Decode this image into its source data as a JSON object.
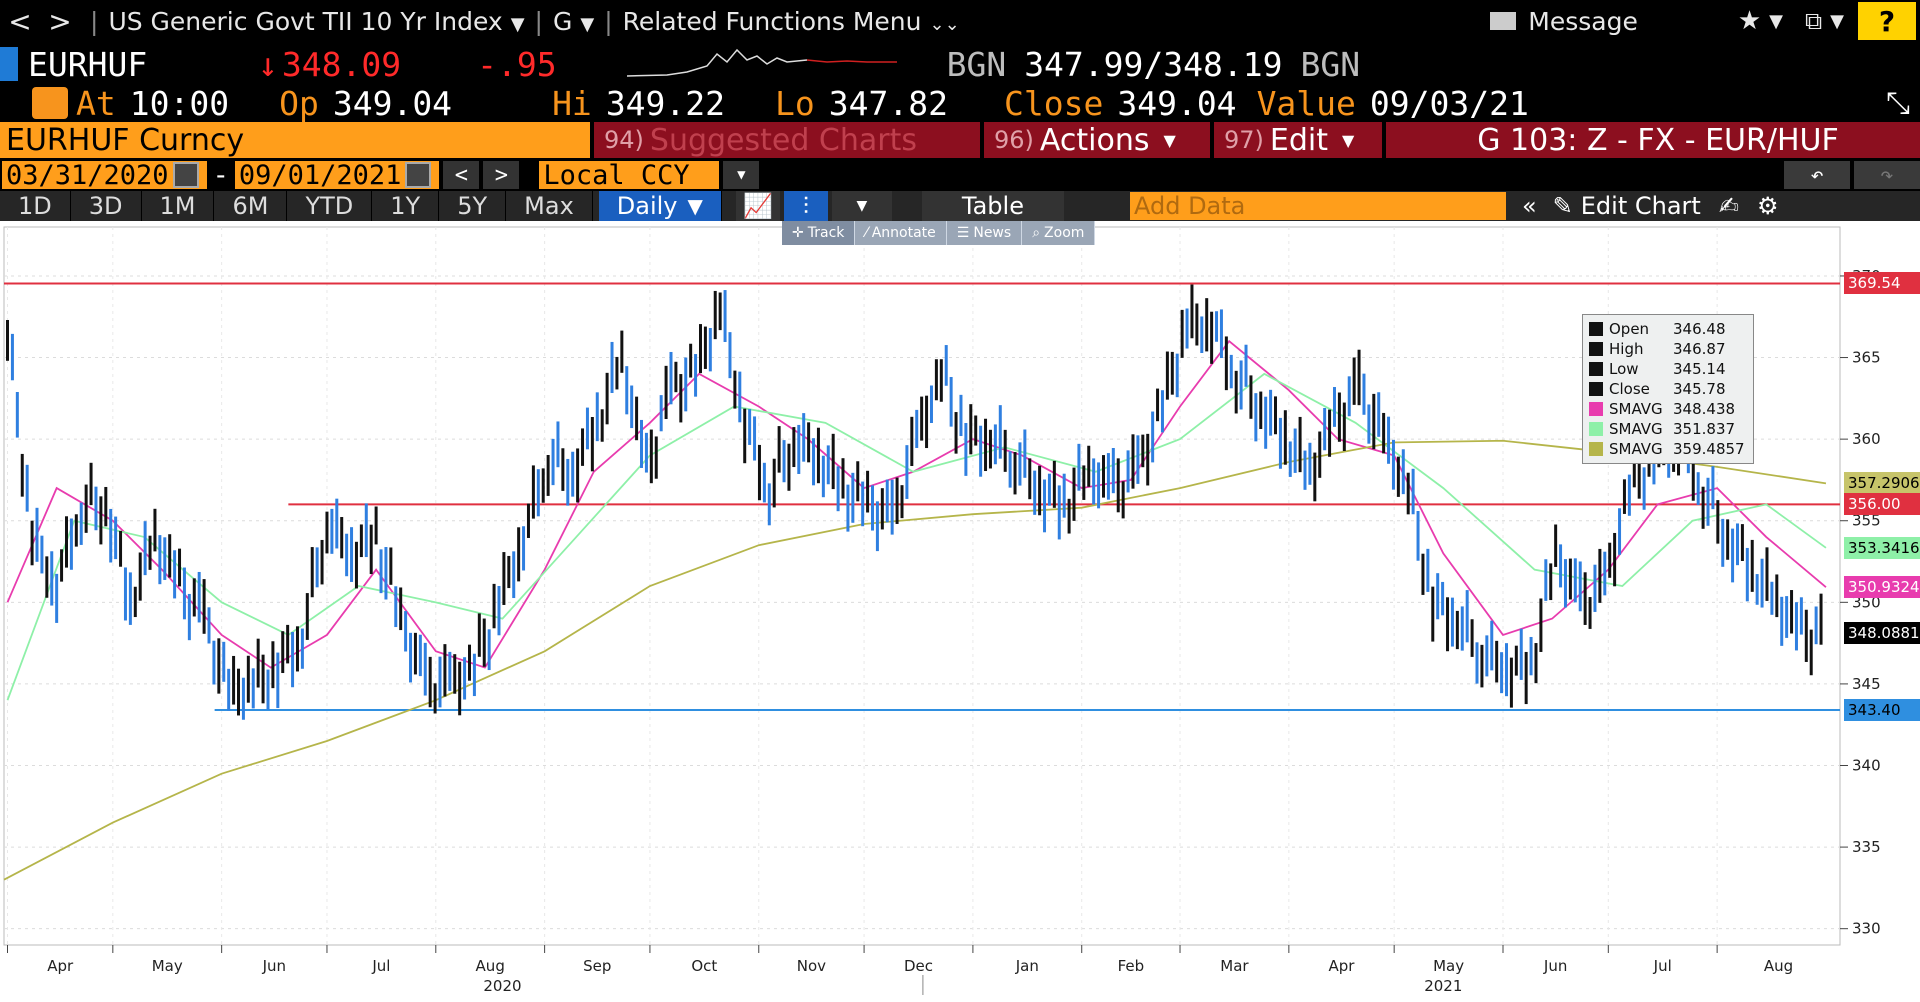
{
  "nav": {
    "back": "<",
    "forward": ">",
    "security": "US Generic Govt TII 10 Yr Index",
    "function": "G",
    "related": "Related Functions Menu",
    "message": "Message",
    "help": "?"
  },
  "ticker": {
    "symbol": "EURHUF",
    "arrow": "↓",
    "last": "348.09",
    "change": "-.95",
    "bid_src": "BGN",
    "bid": "347.99",
    "slash": "/",
    "ask": "348.19",
    "ask_src": "BGN"
  },
  "stats": {
    "at_label": "At",
    "at": "10:00",
    "op_label": "Op",
    "op": "349.04",
    "hi_label": "Hi",
    "hi": "349.22",
    "lo_label": "Lo",
    "lo": "347.82",
    "close_label": "Close",
    "close": "349.04",
    "value_label": "Value",
    "value": "09/03/21"
  },
  "bar4": {
    "security": "EURHUF Curncy",
    "suggested_num": "94)",
    "suggested": "Suggested Charts",
    "actions_num": "96)",
    "actions": "Actions",
    "edit_num": "97)",
    "edit": "Edit",
    "chart_name": "G 103: Z - FX - EUR/HUF"
  },
  "range": {
    "start": "03/31/2020",
    "dash": "-",
    "end": "09/01/2021",
    "ccy": "Local CCY"
  },
  "periods": [
    "1D",
    "3D",
    "1M",
    "6M",
    "YTD",
    "1Y",
    "5Y",
    "Max"
  ],
  "frequency": "Daily",
  "table_label": "Table",
  "add_data_placeholder": "Add Data",
  "edit_chart": "Edit Chart",
  "mini_toolbar": [
    "Track",
    "Annotate",
    "News",
    "Zoom"
  ],
  "legend": [
    {
      "key": "Open",
      "val": "346.48",
      "color": "#111111"
    },
    {
      "key": "High",
      "val": "346.87",
      "color": "#111111"
    },
    {
      "key": "Low",
      "val": "345.14",
      "color": "#111111"
    },
    {
      "key": "Close",
      "val": "345.78",
      "color": "#111111"
    },
    {
      "key": "SMAVG",
      "val": "348.438",
      "color": "#e83cae"
    },
    {
      "key": "SMAVG",
      "val": "351.837",
      "color": "#8ef0a8"
    },
    {
      "key": "SMAVG",
      "val": "359.4857",
      "color": "#b5b54a"
    }
  ],
  "price_tags": [
    {
      "val": "369.54",
      "bg": "#e03040",
      "fg": "#ffffff",
      "y": 369.54
    },
    {
      "val": "357.2906",
      "bg": "#c7c46a",
      "fg": "#000000",
      "y": 357.29
    },
    {
      "val": "356.00",
      "bg": "#e03040",
      "fg": "#ffffff",
      "y": 356.0
    },
    {
      "val": "353.3416",
      "bg": "#8ef0a8",
      "fg": "#000000",
      "y": 353.34
    },
    {
      "val": "350.9324",
      "bg": "#e83cae",
      "fg": "#ffffff",
      "y": 350.93
    },
    {
      "val": "348.0881",
      "bg": "#000000",
      "fg": "#ffffff",
      "y": 348.09
    },
    {
      "val": "343.40",
      "bg": "#2f8fe0",
      "fg": "#000000",
      "y": 343.4
    }
  ],
  "chart_data": {
    "type": "line",
    "x_months": [
      "Apr",
      "May",
      "Jun",
      "Jul",
      "Aug",
      "Sep",
      "Oct",
      "Nov",
      "Dec",
      "Jan",
      "Feb",
      "Mar",
      "Apr",
      "May",
      "Jun",
      "Jul",
      "Aug"
    ],
    "years": [
      "2020",
      "2021"
    ],
    "y_ticks": [
      330,
      335,
      340,
      345,
      350,
      355,
      360,
      365,
      370
    ],
    "ylim": [
      329,
      373
    ],
    "hlines": [
      {
        "value": 369.54,
        "color": "#e03040"
      },
      {
        "value": 356.0,
        "color": "#e03040"
      },
      {
        "value": 343.4,
        "color": "#2f8fe0"
      }
    ],
    "price_close": [
      {
        "x": "2020-04-01",
        "y": 366.5
      },
      {
        "x": "2020-04-08",
        "y": 354
      },
      {
        "x": "2020-04-15",
        "y": 351
      },
      {
        "x": "2020-04-22",
        "y": 356
      },
      {
        "x": "2020-04-29",
        "y": 356
      },
      {
        "x": "2020-05-06",
        "y": 350
      },
      {
        "x": "2020-05-13",
        "y": 354
      },
      {
        "x": "2020-05-20",
        "y": 351
      },
      {
        "x": "2020-05-27",
        "y": 349
      },
      {
        "x": "2020-06-03",
        "y": 344.5
      },
      {
        "x": "2020-06-10",
        "y": 345
      },
      {
        "x": "2020-06-17",
        "y": 346
      },
      {
        "x": "2020-06-24",
        "y": 348
      },
      {
        "x": "2020-07-01",
        "y": 355
      },
      {
        "x": "2020-07-08",
        "y": 353
      },
      {
        "x": "2020-07-15",
        "y": 354
      },
      {
        "x": "2020-07-22",
        "y": 349
      },
      {
        "x": "2020-07-29",
        "y": 345
      },
      {
        "x": "2020-08-05",
        "y": 345
      },
      {
        "x": "2020-08-12",
        "y": 346
      },
      {
        "x": "2020-08-19",
        "y": 350
      },
      {
        "x": "2020-08-26",
        "y": 354
      },
      {
        "x": "2020-09-02",
        "y": 359
      },
      {
        "x": "2020-09-09",
        "y": 358
      },
      {
        "x": "2020-09-16",
        "y": 361
      },
      {
        "x": "2020-09-23",
        "y": 365
      },
      {
        "x": "2020-09-30",
        "y": 358
      },
      {
        "x": "2020-10-07",
        "y": 363
      },
      {
        "x": "2020-10-14",
        "y": 364
      },
      {
        "x": "2020-10-21",
        "y": 368
      },
      {
        "x": "2020-10-28",
        "y": 361
      },
      {
        "x": "2020-11-04",
        "y": 357
      },
      {
        "x": "2020-11-11",
        "y": 360
      },
      {
        "x": "2020-11-18",
        "y": 359
      },
      {
        "x": "2020-11-25",
        "y": 357
      },
      {
        "x": "2020-12-02",
        "y": 356
      },
      {
        "x": "2020-12-09",
        "y": 355
      },
      {
        "x": "2020-12-16",
        "y": 360
      },
      {
        "x": "2020-12-23",
        "y": 364
      },
      {
        "x": "2020-12-30",
        "y": 360
      },
      {
        "x": "2021-01-06",
        "y": 360
      },
      {
        "x": "2021-01-13",
        "y": 359
      },
      {
        "x": "2021-01-20",
        "y": 357
      },
      {
        "x": "2021-01-27",
        "y": 356
      },
      {
        "x": "2021-02-03",
        "y": 358
      },
      {
        "x": "2021-02-10",
        "y": 357
      },
      {
        "x": "2021-02-17",
        "y": 358
      },
      {
        "x": "2021-02-24",
        "y": 362
      },
      {
        "x": "2021-03-03",
        "y": 367
      },
      {
        "x": "2021-03-10",
        "y": 367
      },
      {
        "x": "2021-03-17",
        "y": 364
      },
      {
        "x": "2021-03-24",
        "y": 362
      },
      {
        "x": "2021-03-31",
        "y": 360
      },
      {
        "x": "2021-04-07",
        "y": 358
      },
      {
        "x": "2021-04-14",
        "y": 361
      },
      {
        "x": "2021-04-21",
        "y": 363
      },
      {
        "x": "2021-04-28",
        "y": 360
      },
      {
        "x": "2021-05-05",
        "y": 357
      },
      {
        "x": "2021-05-12",
        "y": 350
      },
      {
        "x": "2021-05-19",
        "y": 349
      },
      {
        "x": "2021-05-26",
        "y": 347
      },
      {
        "x": "2021-06-02",
        "y": 346
      },
      {
        "x": "2021-06-09",
        "y": 346
      },
      {
        "x": "2021-06-16",
        "y": 353
      },
      {
        "x": "2021-06-23",
        "y": 350
      },
      {
        "x": "2021-06-30",
        "y": 351
      },
      {
        "x": "2021-07-07",
        "y": 357
      },
      {
        "x": "2021-07-14",
        "y": 359
      },
      {
        "x": "2021-07-21",
        "y": 360
      },
      {
        "x": "2021-07-28",
        "y": 357
      },
      {
        "x": "2021-08-04",
        "y": 354
      },
      {
        "x": "2021-08-11",
        "y": 352
      },
      {
        "x": "2021-08-18",
        "y": 350
      },
      {
        "x": "2021-08-25",
        "y": 348
      },
      {
        "x": "2021-09-01",
        "y": 348.09
      }
    ],
    "series": [
      {
        "name": "SMAVG",
        "color": "#e83cae",
        "points": [
          {
            "x": "2020-04-01",
            "y": 350
          },
          {
            "x": "2020-04-15",
            "y": 357
          },
          {
            "x": "2020-05-01",
            "y": 355
          },
          {
            "x": "2020-05-15",
            "y": 352
          },
          {
            "x": "2020-06-01",
            "y": 348
          },
          {
            "x": "2020-06-15",
            "y": 346
          },
          {
            "x": "2020-07-01",
            "y": 348
          },
          {
            "x": "2020-07-15",
            "y": 352
          },
          {
            "x": "2020-08-01",
            "y": 347
          },
          {
            "x": "2020-08-15",
            "y": 346
          },
          {
            "x": "2020-09-01",
            "y": 352
          },
          {
            "x": "2020-09-15",
            "y": 358
          },
          {
            "x": "2020-10-01",
            "y": 361
          },
          {
            "x": "2020-10-15",
            "y": 364
          },
          {
            "x": "2020-11-01",
            "y": 362
          },
          {
            "x": "2020-11-15",
            "y": 360
          },
          {
            "x": "2020-12-01",
            "y": 357
          },
          {
            "x": "2020-12-15",
            "y": 358
          },
          {
            "x": "2021-01-01",
            "y": 360
          },
          {
            "x": "2021-01-15",
            "y": 359
          },
          {
            "x": "2021-02-01",
            "y": 357
          },
          {
            "x": "2021-02-15",
            "y": 357.5
          },
          {
            "x": "2021-03-01",
            "y": 362
          },
          {
            "x": "2021-03-15",
            "y": 366
          },
          {
            "x": "2021-04-01",
            "y": 363
          },
          {
            "x": "2021-04-15",
            "y": 360
          },
          {
            "x": "2021-05-01",
            "y": 359
          },
          {
            "x": "2021-05-15",
            "y": 353
          },
          {
            "x": "2021-06-01",
            "y": 348
          },
          {
            "x": "2021-06-15",
            "y": 349
          },
          {
            "x": "2021-07-01",
            "y": 352
          },
          {
            "x": "2021-07-15",
            "y": 356
          },
          {
            "x": "2021-08-01",
            "y": 357
          },
          {
            "x": "2021-08-15",
            "y": 354
          },
          {
            "x": "2021-09-01",
            "y": 350.93
          }
        ]
      },
      {
        "name": "SMAVG",
        "color": "#8ef0a8",
        "points": [
          {
            "x": "2020-04-01",
            "y": 344
          },
          {
            "x": "2020-04-20",
            "y": 355
          },
          {
            "x": "2020-05-10",
            "y": 354
          },
          {
            "x": "2020-06-01",
            "y": 350
          },
          {
            "x": "2020-06-20",
            "y": 348
          },
          {
            "x": "2020-07-10",
            "y": 351
          },
          {
            "x": "2020-08-01",
            "y": 350
          },
          {
            "x": "2020-08-20",
            "y": 349
          },
          {
            "x": "2020-09-10",
            "y": 354
          },
          {
            "x": "2020-10-01",
            "y": 359
          },
          {
            "x": "2020-10-25",
            "y": 362
          },
          {
            "x": "2020-11-20",
            "y": 361
          },
          {
            "x": "2020-12-15",
            "y": 358
          },
          {
            "x": "2021-01-10",
            "y": 359.5
          },
          {
            "x": "2021-02-05",
            "y": 358
          },
          {
            "x": "2021-03-01",
            "y": 360
          },
          {
            "x": "2021-03-25",
            "y": 364
          },
          {
            "x": "2021-04-20",
            "y": 361
          },
          {
            "x": "2021-05-15",
            "y": 357
          },
          {
            "x": "2021-06-10",
            "y": 352
          },
          {
            "x": "2021-07-05",
            "y": 351
          },
          {
            "x": "2021-07-25",
            "y": 355
          },
          {
            "x": "2021-08-15",
            "y": 356
          },
          {
            "x": "2021-09-01",
            "y": 353.34
          }
        ]
      },
      {
        "name": "SMAVG",
        "color": "#b5b54a",
        "points": [
          {
            "x": "2020-03-31",
            "y": 333
          },
          {
            "x": "2020-05-01",
            "y": 336.5
          },
          {
            "x": "2020-06-01",
            "y": 339.5
          },
          {
            "x": "2020-07-01",
            "y": 341.5
          },
          {
            "x": "2020-08-01",
            "y": 344
          },
          {
            "x": "2020-09-01",
            "y": 347
          },
          {
            "x": "2020-10-01",
            "y": 351
          },
          {
            "x": "2020-11-01",
            "y": 353.5
          },
          {
            "x": "2020-12-01",
            "y": 354.8
          },
          {
            "x": "2021-01-01",
            "y": 355.4
          },
          {
            "x": "2021-02-01",
            "y": 355.8
          },
          {
            "x": "2021-03-01",
            "y": 357
          },
          {
            "x": "2021-04-01",
            "y": 358.6
          },
          {
            "x": "2021-05-01",
            "y": 359.8
          },
          {
            "x": "2021-06-01",
            "y": 359.9
          },
          {
            "x": "2021-07-01",
            "y": 359.2
          },
          {
            "x": "2021-08-01",
            "y": 358.3
          },
          {
            "x": "2021-09-01",
            "y": 357.29
          }
        ]
      }
    ]
  }
}
